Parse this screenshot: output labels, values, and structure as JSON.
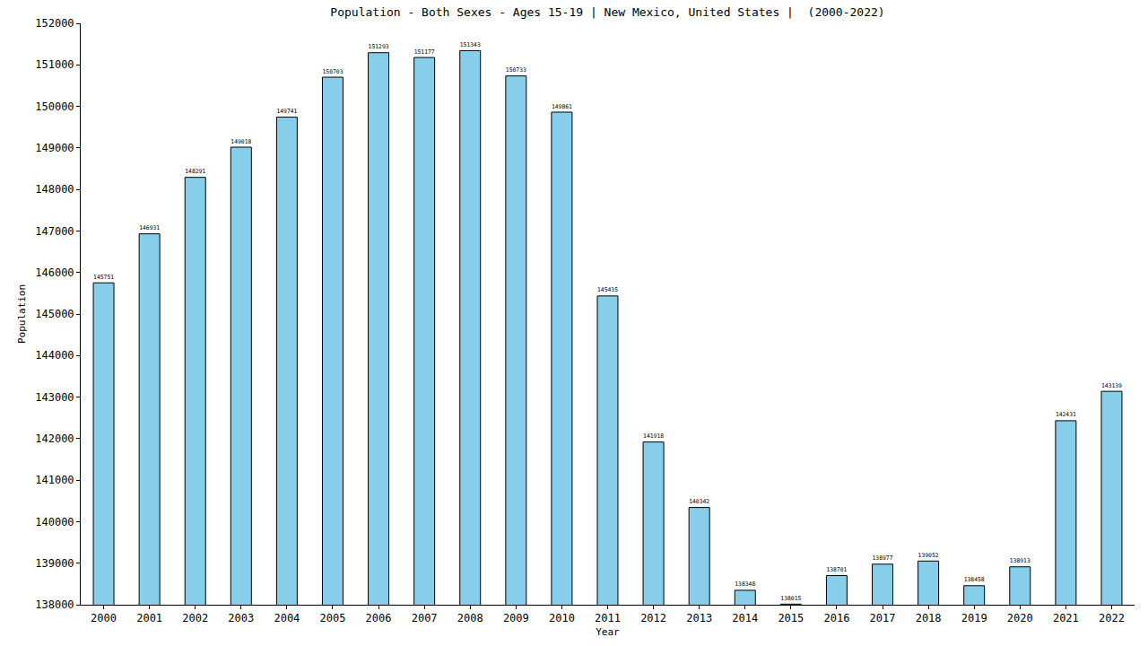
{
  "chart_data": {
    "type": "bar",
    "title": "Population - Both Sexes - Ages 15-19 | New Mexico, United States |  (2000-2022)",
    "x_label": "Year",
    "y_label": "Population",
    "categories": [
      "2000",
      "2001",
      "2002",
      "2003",
      "2004",
      "2005",
      "2006",
      "2007",
      "2008",
      "2009",
      "2010",
      "2011",
      "2012",
      "2013",
      "2014",
      "2015",
      "2016",
      "2017",
      "2018",
      "2019",
      "2020",
      "2021",
      "2022"
    ],
    "values": [
      145751,
      146931,
      148291,
      149018,
      149741,
      150703,
      151293,
      151177,
      151343,
      150733,
      149861,
      145435,
      141918,
      140342,
      138348,
      138015,
      138701,
      138977,
      139052,
      138458,
      138913,
      142431,
      143139
    ],
    "color": "#87ceeb",
    "ylim": [
      138000,
      152000
    ],
    "yticks": [
      138000,
      139000,
      140000,
      141000,
      142000,
      143000,
      144000,
      145000,
      146000,
      147000,
      148000,
      149000,
      150000,
      151000,
      152000
    ],
    "grid": false,
    "data_labels": true
  }
}
